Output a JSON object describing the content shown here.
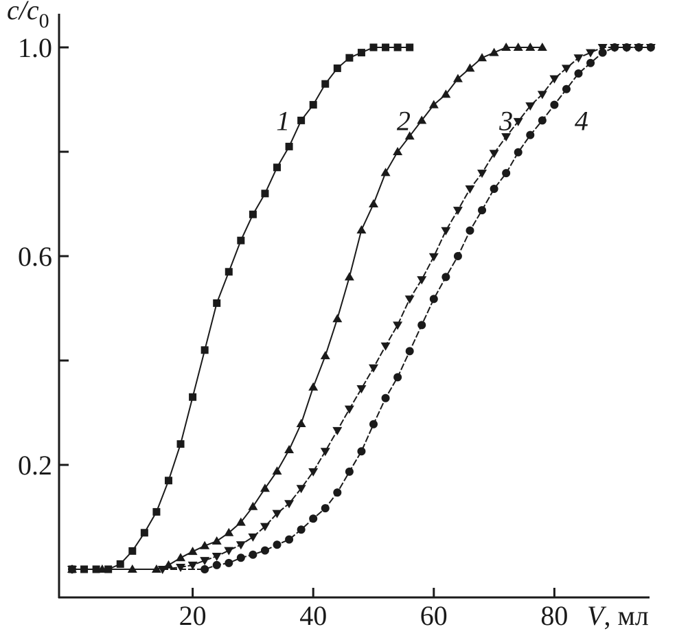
{
  "chart_data": {
    "type": "line",
    "title": "",
    "xlabel_var": "V",
    "xlabel_unit": ", мл",
    "ylabel_var": "c/c",
    "ylabel_sub": "0",
    "xlim": [
      -2,
      97
    ],
    "ylim": [
      -0.05,
      1.07
    ],
    "x_ticks": [
      {
        "value": 20,
        "label": "20"
      },
      {
        "value": 40,
        "label": "40"
      },
      {
        "value": 60,
        "label": "60"
      },
      {
        "value": 80,
        "label": "80"
      }
    ],
    "y_ticks": [
      {
        "value": 0.2,
        "label": "0.2"
      },
      {
        "value": 0.4,
        "label": ""
      },
      {
        "value": 0.6,
        "label": "0.6"
      },
      {
        "value": 0.8,
        "label": ""
      },
      {
        "value": 1.0,
        "label": "1.0"
      }
    ],
    "grid": false,
    "color": "#1a1a1a",
    "series": [
      {
        "label": "1",
        "marker": "square",
        "line": "solid",
        "label_at": [
          35,
          0.86
        ],
        "x": [
          0,
          2,
          4,
          6,
          8,
          10,
          12,
          14,
          16,
          18,
          20,
          22,
          24,
          26,
          28,
          30,
          32,
          34,
          36,
          38,
          40,
          42,
          44,
          46,
          48,
          50,
          52,
          54,
          56
        ],
        "y": [
          0,
          0,
          0,
          0,
          0.01,
          0.035,
          0.07,
          0.11,
          0.17,
          0.24,
          0.33,
          0.42,
          0.51,
          0.57,
          0.63,
          0.68,
          0.72,
          0.77,
          0.81,
          0.86,
          0.89,
          0.93,
          0.96,
          0.98,
          0.99,
          1.0,
          1.0,
          1.0,
          1.0
        ]
      },
      {
        "label": "2",
        "marker": "triangle-up",
        "line": "solid",
        "label_at": [
          55,
          0.86
        ],
        "x": [
          0,
          5,
          10,
          14,
          16,
          18,
          20,
          22,
          24,
          26,
          28,
          30,
          32,
          34,
          36,
          38,
          40,
          42,
          44,
          46,
          48,
          50,
          52,
          54,
          56,
          58,
          60,
          62,
          64,
          66,
          68,
          70,
          72,
          74,
          76,
          78
        ],
        "y": [
          0,
          0,
          0,
          0,
          0.008,
          0.022,
          0.034,
          0.045,
          0.054,
          0.07,
          0.09,
          0.12,
          0.155,
          0.188,
          0.229,
          0.279,
          0.349,
          0.409,
          0.48,
          0.56,
          0.65,
          0.7,
          0.76,
          0.8,
          0.83,
          0.86,
          0.89,
          0.91,
          0.94,
          0.96,
          0.98,
          0.99,
          1.0,
          1.0,
          1.0,
          1.0
        ]
      },
      {
        "label": "3",
        "marker": "triangle-down",
        "line": "dashed",
        "label_at": [
          72,
          0.86
        ],
        "x": [
          0,
          15,
          18,
          20,
          22,
          24,
          26,
          28,
          30,
          32,
          34,
          36,
          38,
          40,
          42,
          44,
          46,
          48,
          50,
          52,
          54,
          56,
          58,
          60,
          62,
          64,
          66,
          68,
          70,
          72,
          74,
          76,
          78,
          80,
          82,
          84,
          86,
          88,
          90,
          92,
          94,
          96
        ],
        "y": [
          0,
          0,
          0.004,
          0.008,
          0.017,
          0.025,
          0.036,
          0.047,
          0.062,
          0.082,
          0.107,
          0.126,
          0.155,
          0.187,
          0.226,
          0.266,
          0.307,
          0.346,
          0.386,
          0.428,
          0.468,
          0.518,
          0.555,
          0.599,
          0.649,
          0.688,
          0.729,
          0.759,
          0.797,
          0.829,
          0.858,
          0.888,
          0.91,
          0.94,
          0.96,
          0.98,
          0.99,
          1.0,
          1.0,
          1.0,
          1.0,
          1.0
        ]
      },
      {
        "label": "4",
        "marker": "circle",
        "line": "dashed",
        "label_at": [
          84.5,
          0.86
        ],
        "x": [
          0,
          22,
          24,
          26,
          28,
          30,
          32,
          34,
          36,
          38,
          40,
          42,
          44,
          46,
          48,
          50,
          52,
          54,
          56,
          58,
          60,
          62,
          64,
          66,
          68,
          70,
          72,
          74,
          76,
          78,
          80,
          82,
          84,
          86,
          88,
          90,
          92,
          94,
          96
        ],
        "y": [
          0,
          0,
          0.008,
          0.012,
          0.022,
          0.028,
          0.036,
          0.047,
          0.057,
          0.076,
          0.097,
          0.117,
          0.147,
          0.187,
          0.226,
          0.278,
          0.328,
          0.368,
          0.418,
          0.468,
          0.518,
          0.56,
          0.6,
          0.649,
          0.688,
          0.729,
          0.759,
          0.799,
          0.832,
          0.86,
          0.89,
          0.92,
          0.95,
          0.97,
          0.99,
          1.0,
          1.0,
          1.0,
          1.0
        ]
      }
    ]
  }
}
